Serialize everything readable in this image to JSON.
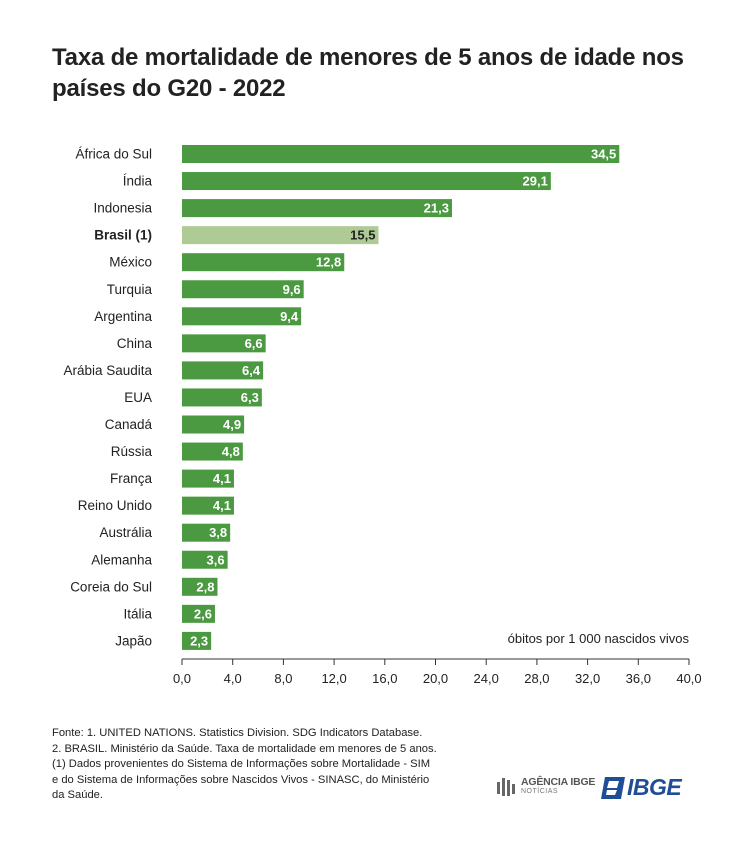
{
  "title": "Taxa de mortalidade de menores de 5 anos de idade nos países do G20 - 2022",
  "colors": {
    "bar": "#4b9a42",
    "highlight": "#aecb96",
    "axis": "#333333",
    "text": "#222222"
  },
  "chart_data": {
    "type": "bar",
    "orientation": "horizontal",
    "categories": [
      "África do Sul",
      "Índia",
      "Indonesia",
      "Brasil (1)",
      "México",
      "Turquia",
      "Argentina",
      "China",
      "Arábia Saudita",
      "EUA",
      "Canadá",
      "Rússia",
      "França",
      "Reino Unido",
      "Austrália",
      "Alemanha",
      "Coreia do Sul",
      "Itália",
      "Japão"
    ],
    "values": [
      34.5,
      29.1,
      21.3,
      15.5,
      12.8,
      9.6,
      9.4,
      6.6,
      6.4,
      6.3,
      4.9,
      4.8,
      4.1,
      4.1,
      3.8,
      3.6,
      2.8,
      2.6,
      2.3
    ],
    "value_labels": [
      "34,5",
      "29,1",
      "21,3",
      "15,5",
      "12,8",
      "9,6",
      "9,4",
      "6,6",
      "6,4",
      "6,3",
      "4,9",
      "4,8",
      "4,1",
      "4,1",
      "3,8",
      "3,6",
      "2,8",
      "2,6",
      "2,3"
    ],
    "highlight": "Brasil (1)",
    "xlim": [
      0,
      40
    ],
    "xticks": [
      0,
      4,
      8,
      12,
      16,
      20,
      24,
      28,
      32,
      36,
      40
    ],
    "xtick_labels": [
      "0,0",
      "4,0",
      "8,0",
      "12,0",
      "16,0",
      "20,0",
      "24,0",
      "28,0",
      "32,0",
      "36,0",
      "40,0"
    ],
    "unit_note": "óbitos por 1 000 nascidos vivos"
  },
  "footer": [
    "Fonte: 1. UNITED NATIONS. Statistics Division. SDG Indicators Database.",
    "2. BRASIL. Ministério da Saúde. Taxa de mortalidade em menores de 5 anos.",
    "(1) Dados provenientes do Sistema de Informações sobre Mortalidade - SIM",
    "e do Sistema de Informações sobre Nascidos Vivos - SINASC, do Ministério",
    "da Saúde."
  ],
  "logos": {
    "agencia_line1": "AGÊNCIA IBGE",
    "agencia_line2": "NOTÍCIAS",
    "ibge": "IBGE",
    "agencia_icon": "agencia-ibge-logo-icon",
    "ibge_icon": "ibge-logo-icon"
  }
}
